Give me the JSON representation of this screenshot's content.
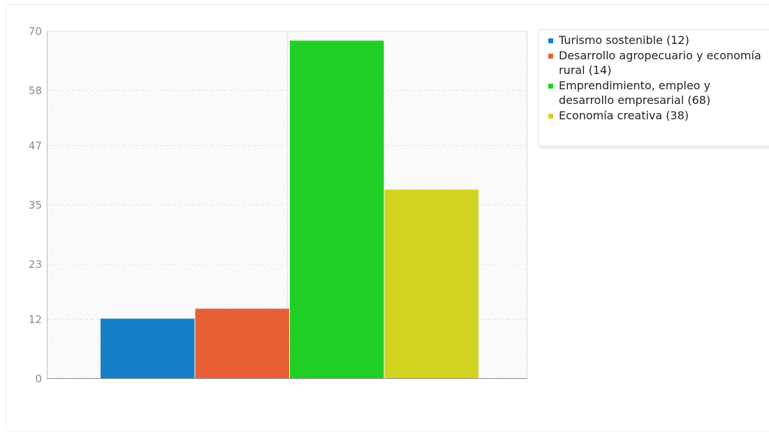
{
  "chart_data": {
    "type": "bar",
    "categories": [
      "Turismo sostenible (12)",
      "Desarrollo agropecuario y economía rural (14)",
      "Emprendimiento, empleo y desarrollo empresarial (68)",
      "Economía creativa (38)"
    ],
    "series": [
      {
        "name": "Turismo sostenible (12)",
        "value": 12,
        "color": "#1580c7"
      },
      {
        "name": "Desarrollo agropecuario y economía rural (14)",
        "value": 14,
        "color": "#e95f35"
      },
      {
        "name": "Emprendimiento, empleo y desarrollo empresarial (68)",
        "value": 68,
        "color": "#20cf26"
      },
      {
        "name": "Economía creativa (38)",
        "value": 38,
        "color": "#d2d41f"
      }
    ],
    "yticks": [
      "0",
      "12",
      "23",
      "35",
      "47",
      "58",
      "70"
    ],
    "ylim": [
      0,
      70
    ],
    "grid": true,
    "legend_position": "top-right",
    "title": "",
    "xlabel": "",
    "ylabel": ""
  }
}
